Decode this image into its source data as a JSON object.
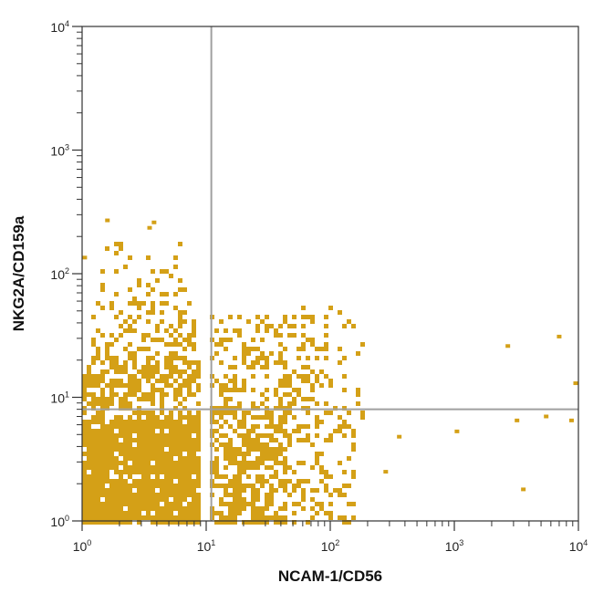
{
  "chart_data": {
    "type": "scatter",
    "plot_style": "flow-cytometry dot plot with quadrant gates",
    "xlabel": "NCAM-1/CD56",
    "ylabel": "NKG2A/CD159a",
    "x_scale": "log",
    "y_scale": "log",
    "xlim": [
      1,
      10000
    ],
    "ylim": [
      1,
      10000
    ],
    "x_ticks": [
      {
        "base": "10",
        "exp": "0"
      },
      {
        "base": "10",
        "exp": "1"
      },
      {
        "base": "10",
        "exp": "2"
      },
      {
        "base": "10",
        "exp": "3"
      },
      {
        "base": "10",
        "exp": "4"
      }
    ],
    "y_ticks": [
      {
        "base": "10",
        "exp": "0"
      },
      {
        "base": "10",
        "exp": "1"
      },
      {
        "base": "10",
        "exp": "2"
      },
      {
        "base": "10",
        "exp": "3"
      },
      {
        "base": "10",
        "exp": "4"
      }
    ],
    "quadrant_gates": {
      "x": 11,
      "y": 8
    },
    "grid": false,
    "dot_color": "#D4A017",
    "gate_color": "#A0A0A0",
    "clusters": [
      {
        "x_range": [
          1,
          9
        ],
        "y_range": [
          1,
          6.5
        ],
        "density": 0.92
      },
      {
        "x_range": [
          1,
          9
        ],
        "y_range": [
          6.5,
          20
        ],
        "density": 0.6
      },
      {
        "x_range": [
          1.2,
          8
        ],
        "y_range": [
          20,
          60
        ],
        "density": 0.3
      },
      {
        "x_range": [
          1.5,
          7
        ],
        "y_range": [
          60,
          180
        ],
        "density": 0.12
      },
      {
        "x_range": [
          11,
          45
        ],
        "y_range": [
          1,
          8
        ],
        "density": 0.6
      },
      {
        "x_range": [
          45,
          150
        ],
        "y_range": [
          1,
          8
        ],
        "density": 0.28
      },
      {
        "x_range": [
          11,
          70
        ],
        "y_range": [
          8,
          45
        ],
        "density": 0.3
      },
      {
        "x_range": [
          60,
          200
        ],
        "y_range": [
          6,
          55
        ],
        "density": 0.12
      }
    ],
    "outliers": [
      {
        "x": 2700,
        "y": 26
      },
      {
        "x": 7000,
        "y": 31
      },
      {
        "x": 9500,
        "y": 13
      },
      {
        "x": 5500,
        "y": 7
      },
      {
        "x": 3200,
        "y": 6.5
      },
      {
        "x": 3600,
        "y": 1.8
      },
      {
        "x": 8800,
        "y": 6.5
      },
      {
        "x": 1050,
        "y": 5.3
      },
      {
        "x": 360,
        "y": 4.8
      },
      {
        "x": 280,
        "y": 2.5
      },
      {
        "x": 1.6,
        "y": 270
      },
      {
        "x": 3.8,
        "y": 260
      },
      {
        "x": 3.5,
        "y": 235
      },
      {
        "x": 1.05,
        "y": 135
      }
    ]
  }
}
